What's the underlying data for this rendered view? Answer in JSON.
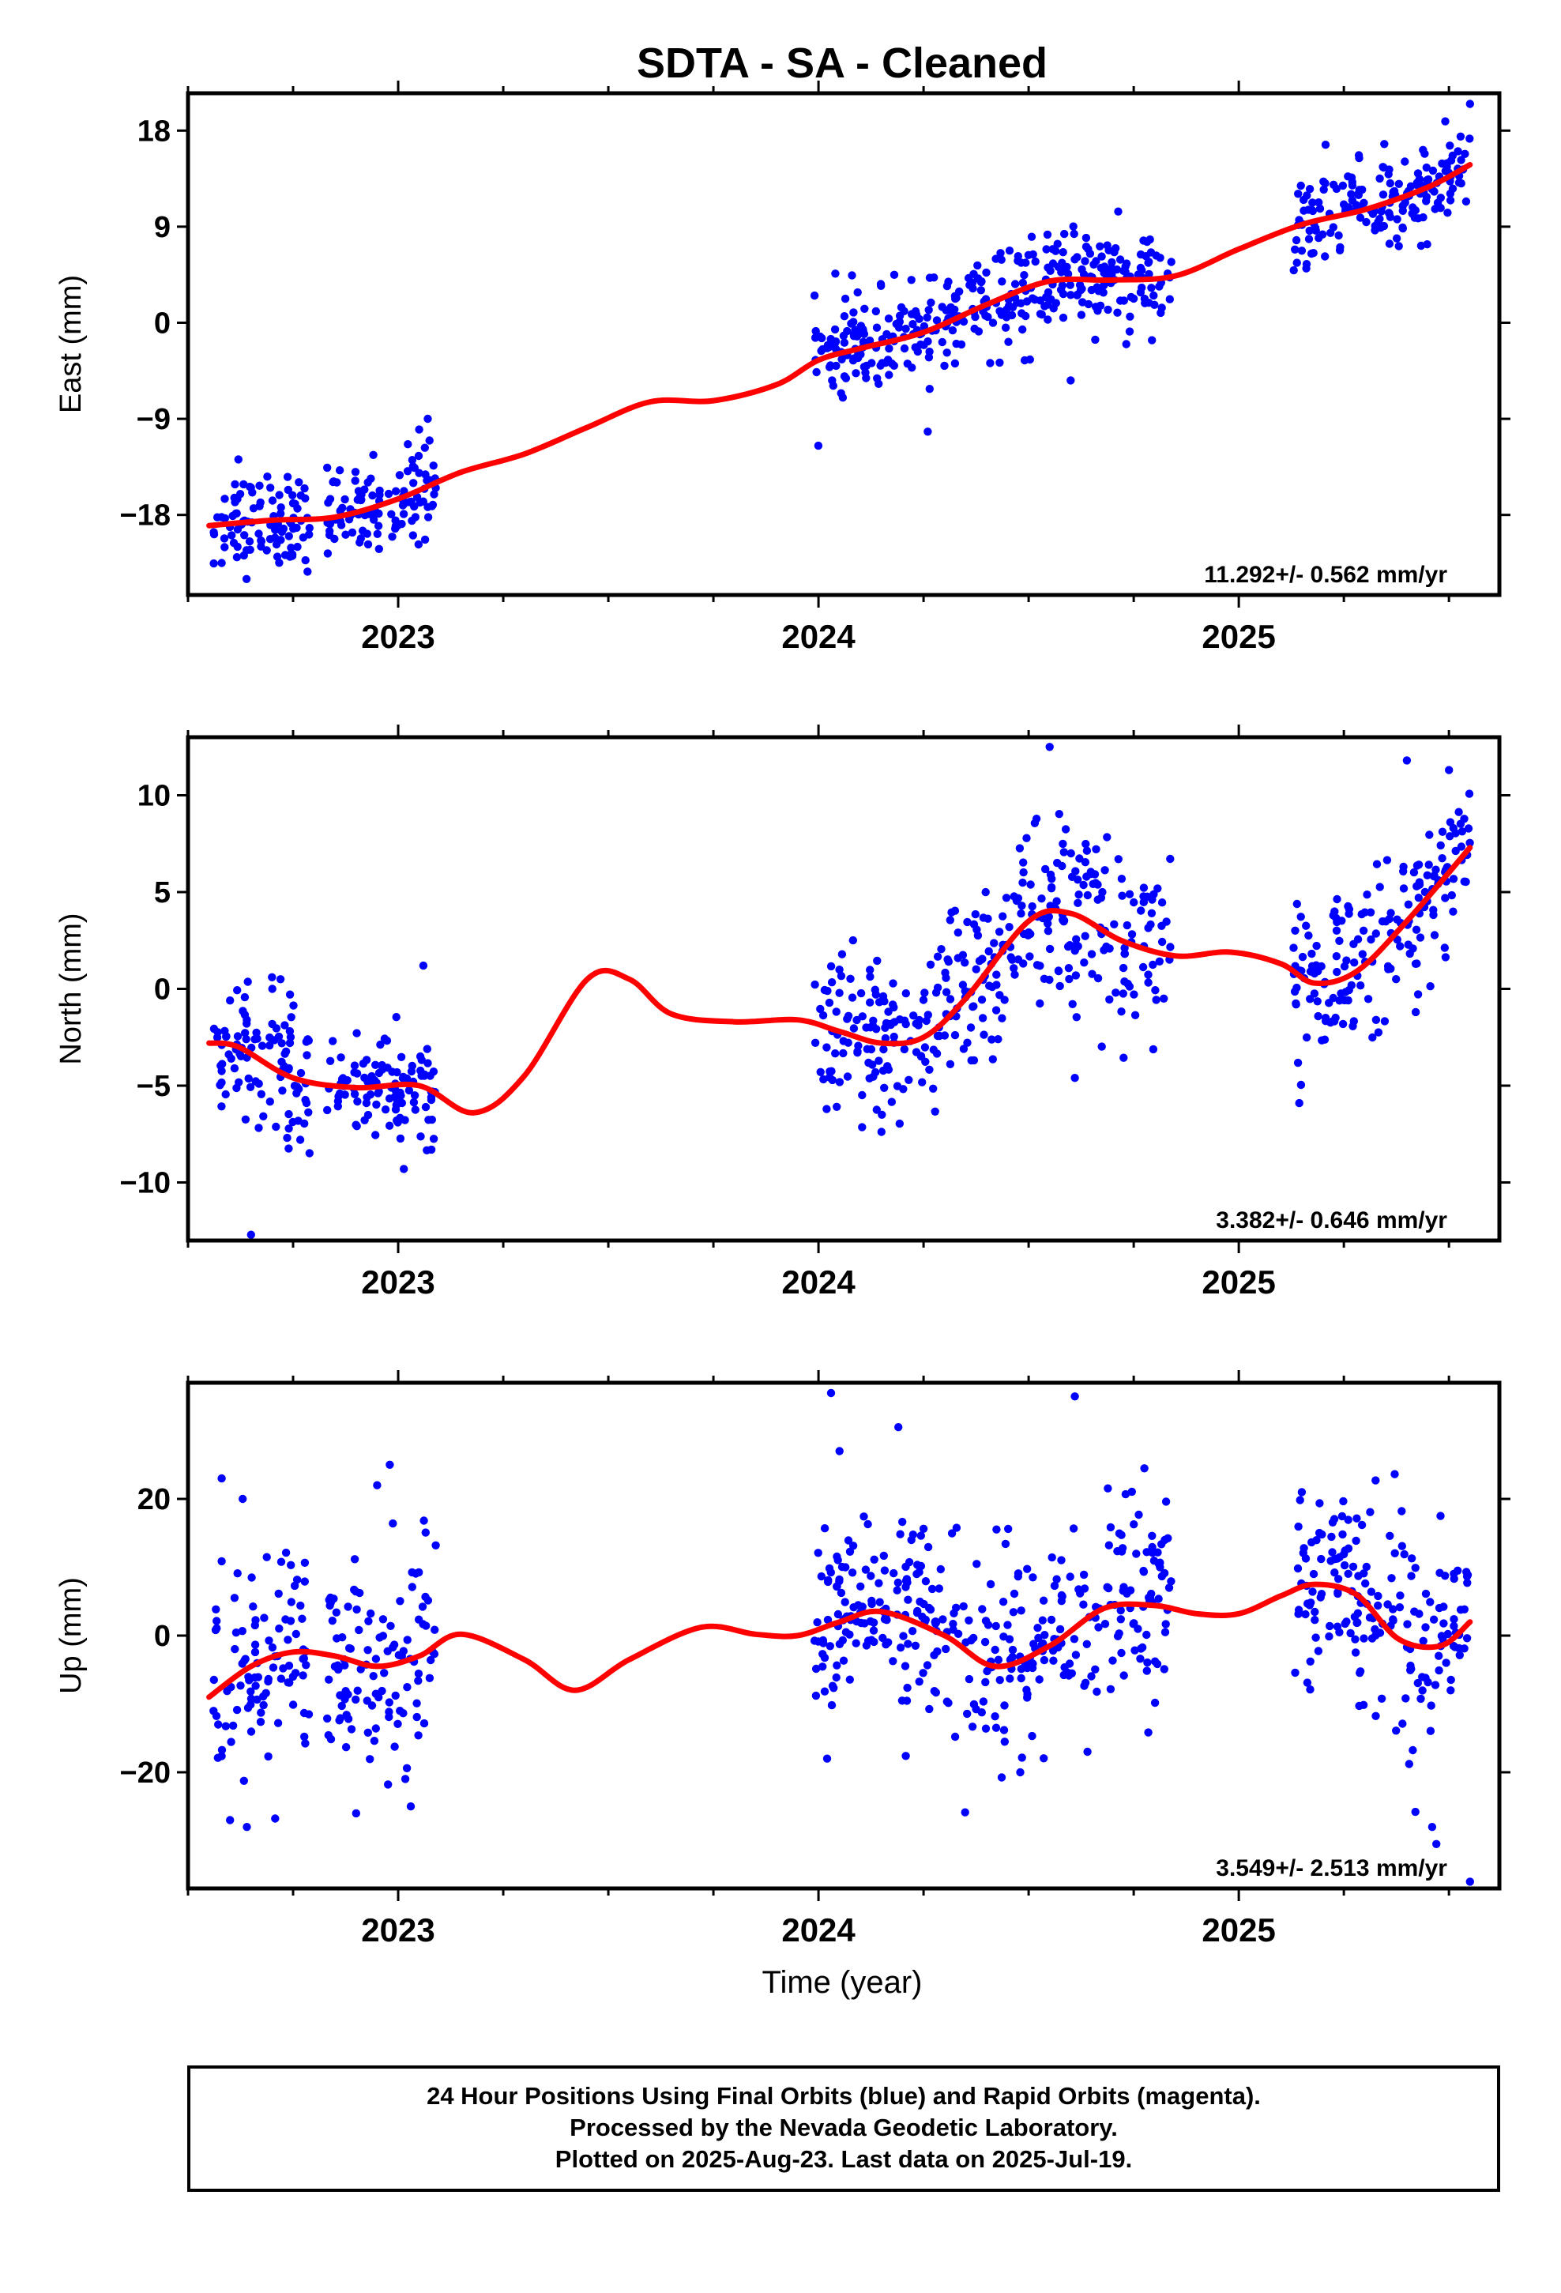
{
  "title": "SDTA  - SA - Cleaned",
  "xlabel": "Time (year)",
  "colors": {
    "points": "#0000ff",
    "fit": "#ff0000",
    "frame": "#000000"
  },
  "footer": {
    "lines": [
      "24 Hour Positions Using Final Orbits (blue) and Rapid Orbits (magenta).",
      "Processed by the Nevada Geodetic Laboratory.",
      "Plotted on 2025-Aug-23. Last data on 2025-Jul-19."
    ]
  },
  "chart_data": [
    {
      "type": "scatter",
      "component": "east",
      "ylabel": "East (mm)",
      "xlim": [
        2022.5,
        2025.62
      ],
      "ylim": [
        -25.5,
        21.5
      ],
      "yticks": [
        -18,
        -9,
        0,
        9,
        18
      ],
      "ytick_labels": [
        "−18",
        "−9",
        "0",
        "9",
        "18"
      ],
      "xticks": [
        2023,
        2024,
        2025
      ],
      "xtick_labels": [
        "2023",
        "2024",
        "2025"
      ],
      "rate_label": "11.292+/- 0.562 mm/yr",
      "segments": [
        [
          2022.56,
          2022.79,
          -18.5,
          2.2
        ],
        [
          2022.83,
          2023.09,
          -15.5,
          2.2
        ],
        [
          2023.99,
          2024.84,
          0.5,
          2.3
        ],
        [
          2025.13,
          2025.55,
          11.0,
          2.2
        ]
      ],
      "fit_line": {
        "x": [
          2022.55,
          2022.7,
          2022.85,
          2023.0,
          2023.15,
          2023.3,
          2023.45,
          2023.6,
          2023.75,
          2023.9,
          2024.0,
          2024.1,
          2024.25,
          2024.4,
          2024.55,
          2024.7,
          2024.85,
          2025.0,
          2025.15,
          2025.3,
          2025.45,
          2025.55
        ],
        "y": [
          -19.0,
          -18.5,
          -18.2,
          -16.5,
          -14.0,
          -12.3,
          -9.8,
          -7.4,
          -7.3,
          -5.8,
          -3.5,
          -2.4,
          -0.9,
          1.7,
          3.9,
          4.0,
          4.4,
          6.9,
          9.2,
          10.6,
          12.7,
          14.8
        ]
      },
      "outliers": [
        [
          2022.58,
          -22.5
        ],
        [
          2022.62,
          -12.8
        ],
        [
          2023.05,
          -10.0
        ],
        [
          2024.04,
          4.6
        ],
        [
          2024.26,
          -10.2
        ],
        [
          2024.6,
          -5.4
        ],
        [
          2025.55,
          20.5
        ]
      ]
    },
    {
      "type": "scatter",
      "component": "north",
      "ylabel": "North (mm)",
      "xlim": [
        2022.5,
        2025.62
      ],
      "ylim": [
        -13.0,
        13.0
      ],
      "yticks": [
        -10,
        -5,
        0,
        5,
        10
      ],
      "ytick_labels": [
        "−10",
        "−5",
        "0",
        "5",
        "10"
      ],
      "xticks": [
        2023,
        2024,
        2025
      ],
      "xtick_labels": [
        "2023",
        "2024",
        "2025"
      ],
      "rate_label": "3.382+/- 0.646 mm/yr",
      "segments": [
        [
          2022.56,
          2022.79,
          -5.0,
          1.8
        ],
        [
          2022.83,
          2023.09,
          -5.0,
          1.5
        ],
        [
          2023.99,
          2024.84,
          1.5,
          2.3
        ],
        [
          2025.13,
          2025.55,
          3.5,
          2.0
        ]
      ],
      "fit_line": {
        "x": [
          2022.55,
          2022.62,
          2022.75,
          2022.9,
          2023.05,
          2023.18,
          2023.3,
          2023.45,
          2023.55,
          2023.65,
          2023.8,
          2023.95,
          2024.05,
          2024.15,
          2024.25,
          2024.35,
          2024.5,
          2024.6,
          2024.72,
          2024.85,
          2024.98,
          2025.1,
          2025.18,
          2025.28,
          2025.4,
          2025.55
        ],
        "y": [
          -2.8,
          -3.0,
          -4.6,
          -5.1,
          -5.0,
          -6.4,
          -4.5,
          0.5,
          0.5,
          -1.3,
          -1.7,
          -1.6,
          -2.2,
          -2.8,
          -2.5,
          -0.5,
          3.5,
          3.9,
          2.5,
          1.7,
          1.9,
          1.3,
          0.3,
          0.9,
          3.5,
          7.3
        ]
      },
      "outliers": [
        [
          2022.6,
          -0.6
        ],
        [
          2022.72,
          0.5
        ],
        [
          2022.65,
          -12.7
        ],
        [
          2023.06,
          1.2
        ],
        [
          2024.55,
          12.5
        ],
        [
          2024.61,
          -4.6
        ],
        [
          2025.4,
          11.8
        ],
        [
          2025.5,
          11.3
        ]
      ]
    },
    {
      "type": "scatter",
      "component": "up",
      "ylabel": "Up (mm)",
      "xlim": [
        2022.5,
        2025.62
      ],
      "ylim": [
        -37.0,
        37.0
      ],
      "yticks": [
        -20,
        0,
        20
      ],
      "ytick_labels": [
        "−20",
        "0",
        "20"
      ],
      "xticks": [
        2023,
        2024,
        2025
      ],
      "xtick_labels": [
        "2023",
        "2024",
        "2025"
      ],
      "rate_label": "3.549+/- 2.513 mm/yr",
      "segments": [
        [
          2022.56,
          2022.79,
          -3.5,
          8.0
        ],
        [
          2022.83,
          2023.09,
          -2.5,
          7.5
        ],
        [
          2023.99,
          2024.84,
          1.5,
          8.0
        ],
        [
          2025.13,
          2025.55,
          -3.0,
          7.5
        ]
      ],
      "fit_line": {
        "x": [
          2022.55,
          2022.65,
          2022.75,
          2022.85,
          2022.95,
          2023.05,
          2023.15,
          2023.3,
          2023.42,
          2023.55,
          2023.72,
          2023.85,
          2023.95,
          2024.05,
          2024.15,
          2024.3,
          2024.42,
          2024.55,
          2024.68,
          2024.8,
          2024.9,
          2025.0,
          2025.1,
          2025.18,
          2025.28,
          2025.38,
          2025.48,
          2025.55
        ],
        "y": [
          -9.0,
          -4.5,
          -2.4,
          -3.0,
          -4.5,
          -3.0,
          0.2,
          -3.5,
          -8.0,
          -3.5,
          1.2,
          0.2,
          0.0,
          2.0,
          3.5,
          0.0,
          -4.5,
          -1.5,
          4.0,
          4.4,
          3.2,
          3.2,
          5.8,
          7.5,
          6.0,
          -0.5,
          -1.5,
          2.0
        ]
      },
      "outliers": [
        [
          2022.58,
          23.0
        ],
        [
          2022.63,
          20.0
        ],
        [
          2022.6,
          -27.0
        ],
        [
          2022.64,
          -28.0
        ],
        [
          2022.98,
          25.0
        ],
        [
          2022.95,
          22.0
        ],
        [
          2022.9,
          -26.0
        ],
        [
          2023.03,
          -25.0
        ],
        [
          2024.03,
          35.5
        ],
        [
          2024.05,
          27.0
        ],
        [
          2024.19,
          30.5
        ],
        [
          2024.61,
          35.0
        ],
        [
          2024.48,
          -20.0
        ],
        [
          2024.64,
          -17.0
        ],
        [
          2025.15,
          21.0
        ],
        [
          2025.48,
          17.5
        ],
        [
          2025.46,
          -28.0
        ],
        [
          2025.47,
          -30.5
        ],
        [
          2025.55,
          -36.0
        ]
      ]
    }
  ]
}
